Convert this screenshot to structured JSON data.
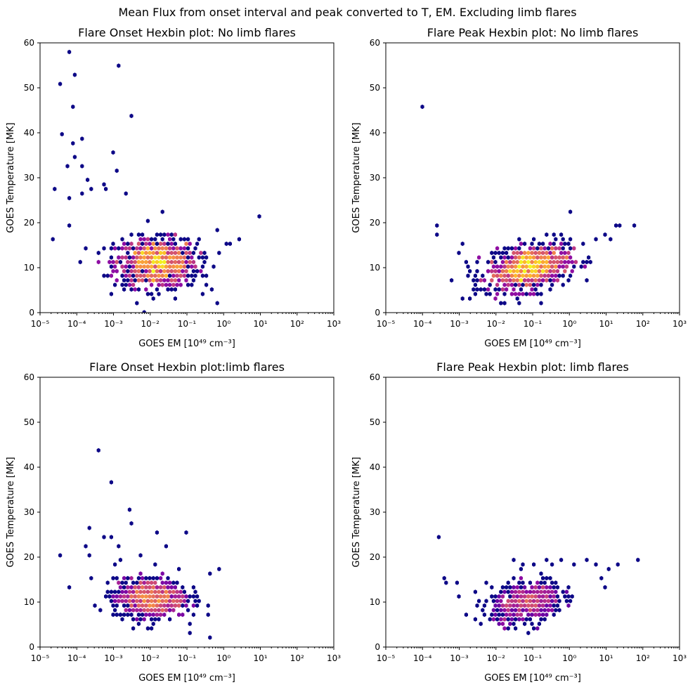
{
  "suptitle": "Mean Flux from onset interval and peak converted to T, EM. Excluding limb flares",
  "colors": {
    "low": "#0d0887",
    "mid": "#9c179e",
    "high": "#ed7953",
    "top": "#fdc328"
  },
  "chart_data": [
    {
      "type": "heatmap",
      "subtype": "hexbin",
      "title": "Flare Onset Hexbin plot: No limb flares",
      "xlabel": "GOES EM [10^49 cm^-3]",
      "ylabel": "GOES Temperature [MK]",
      "xscale": "log",
      "xlim": [
        1e-05,
        1000.0
      ],
      "ylim": [
        0,
        60
      ],
      "xticks": [
        "10^-5",
        "10^-4",
        "10^-3",
        "10^-2",
        "10^-1",
        "10^0",
        "10^1",
        "10^2",
        "10^3"
      ],
      "yticks": [
        0,
        10,
        20,
        30,
        40,
        50,
        60
      ],
      "colormap": "plasma",
      "core": {
        "x_range": [
          0.0004,
          0.3
        ],
        "y_range": [
          5,
          20
        ],
        "center": [
          0.015,
          11
        ],
        "peak_count_relative": 1.0
      },
      "outliers": [
        [
          2.2e-05,
          16
        ],
        [
          2.8e-05,
          28
        ],
        [
          3.5e-05,
          50.5
        ],
        [
          4.2e-05,
          40
        ],
        [
          5e-05,
          33
        ],
        [
          6.5e-05,
          57.5
        ],
        [
          7e-05,
          25
        ],
        [
          7.5e-05,
          46
        ],
        [
          8e-05,
          53
        ],
        [
          8e-05,
          38
        ],
        [
          8.5e-05,
          34.5
        ],
        [
          7e-05,
          19
        ],
        [
          0.00014,
          38.5
        ],
        [
          0.00014,
          33
        ],
        [
          0.00015,
          26
        ],
        [
          0.0002,
          30
        ],
        [
          0.00025,
          27
        ],
        [
          0.0015,
          54.5
        ],
        [
          0.0028,
          44
        ],
        [
          0.0009,
          36
        ],
        [
          0.0012,
          31.5
        ],
        [
          0.002,
          26.5
        ],
        [
          0.0005,
          29
        ],
        [
          0.0006,
          27
        ],
        [
          0.02,
          22.5
        ],
        [
          10,
          21
        ],
        [
          0.6,
          18.5
        ],
        [
          0.7,
          2
        ],
        [
          1.2,
          15
        ],
        [
          1.6,
          15
        ],
        [
          2.5,
          16
        ],
        [
          0.35,
          8
        ],
        [
          0.05,
          3
        ],
        [
          0.00012,
          11.5
        ]
      ]
    },
    {
      "type": "heatmap",
      "subtype": "hexbin",
      "title": "Flare Peak Hexbin plot: No limb flares",
      "xlabel": "GOES EM [10^49 cm^-3]",
      "ylabel": "GOES Temperature [MK]",
      "xscale": "log",
      "xlim": [
        1e-05,
        1000.0
      ],
      "ylim": [
        0,
        60
      ],
      "xticks": [
        "10^-5",
        "10^-4",
        "10^-3",
        "10^-2",
        "10^-1",
        "10^0",
        "10^1",
        "10^2",
        "10^3"
      ],
      "yticks": [
        0,
        10,
        20,
        30,
        40,
        50,
        60
      ],
      "colormap": "plasma",
      "core": {
        "x_range": [
          0.01,
          8
        ],
        "y_range": [
          5,
          18
        ],
        "center": [
          0.08,
          10
        ],
        "peak_count_relative": 1.0
      },
      "outliers": [
        [
          0.00011,
          46.2
        ],
        [
          0.00025,
          19.5
        ],
        [
          0.00025,
          17.5
        ],
        [
          0.001,
          13.5
        ],
        [
          0.0013,
          15.5
        ],
        [
          0.0015,
          11
        ],
        [
          0.0018,
          9
        ],
        [
          0.0025,
          7
        ],
        [
          0.0028,
          5.5
        ],
        [
          0.0035,
          12
        ],
        [
          1,
          22.3
        ],
        [
          0.18,
          2.3
        ],
        [
          65,
          18.9
        ],
        [
          25,
          19.8
        ],
        [
          20,
          19
        ],
        [
          10,
          17.5
        ],
        [
          12,
          16
        ],
        [
          5,
          16.5
        ]
      ]
    },
    {
      "type": "heatmap",
      "subtype": "hexbin",
      "title": "Flare Onset Hexbin plot:limb flares",
      "xlabel": "GOES EM [10^49 cm^-3]",
      "ylabel": "GOES Temperature [MK]",
      "xscale": "log",
      "xlim": [
        1e-05,
        1000.0
      ],
      "ylim": [
        0,
        60
      ],
      "xticks": [
        "10^-5",
        "10^-4",
        "10^-3",
        "10^-2",
        "10^-1",
        "10^0",
        "10^1",
        "10^2",
        "10^3"
      ],
      "yticks": [
        0,
        10,
        20,
        30,
        40,
        50,
        60
      ],
      "colormap": "plasma",
      "core": {
        "x_range": [
          0.0006,
          0.2
        ],
        "y_range": [
          5,
          17
        ],
        "center": [
          0.01,
          11
        ],
        "peak_count_relative": 0.75
      },
      "outliers": [
        [
          3.5e-05,
          20.3
        ],
        [
          7e-05,
          13.5
        ],
        [
          0.00016,
          22
        ],
        [
          0.0002,
          26.5
        ],
        [
          0.00022,
          20.5
        ],
        [
          0.0003,
          9
        ],
        [
          0.00038,
          44
        ],
        [
          0.0005,
          24
        ],
        [
          0.0009,
          36.5
        ],
        [
          0.0009,
          24
        ],
        [
          0.0015,
          19.5
        ],
        [
          0.003,
          31
        ],
        [
          0.003,
          28
        ],
        [
          0.0015,
          22.5
        ],
        [
          0.015,
          25
        ],
        [
          0.025,
          22.5
        ],
        [
          0.09,
          25
        ],
        [
          0.12,
          3
        ],
        [
          0.4,
          2
        ],
        [
          0.4,
          7.5
        ],
        [
          0.8,
          17.2
        ],
        [
          0.4,
          16.5
        ],
        [
          0.005,
          20.3
        ]
      ]
    },
    {
      "type": "heatmap",
      "subtype": "hexbin",
      "title": "Flare Peak Hexbin plot: limb flares",
      "xlabel": "GOES EM [10^49 cm^-3]",
      "ylabel": "GOES Temperature [MK]",
      "xscale": "log",
      "xlim": [
        1e-05,
        1000.0
      ],
      "ylim": [
        0,
        60
      ],
      "xticks": [
        "10^-5",
        "10^-4",
        "10^-3",
        "10^-2",
        "10^-1",
        "10^0",
        "10^1",
        "10^2",
        "10^3"
      ],
      "yticks": [
        0,
        10,
        20,
        30,
        40,
        50,
        60
      ],
      "colormap": "plasma",
      "core": {
        "x_range": [
          0.01,
          3
        ],
        "y_range": [
          5,
          17
        ],
        "center": [
          0.07,
          10
        ],
        "peak_count_relative": 0.6
      },
      "outliers": [
        [
          0.00028,
          24
        ],
        [
          0.00035,
          15.5
        ],
        [
          0.0004,
          14
        ],
        [
          0.0008,
          14.5
        ],
        [
          0.001,
          11
        ],
        [
          0.0015,
          7.5
        ],
        [
          0.003,
          12
        ],
        [
          0.0035,
          10
        ],
        [
          0.004,
          8.5
        ],
        [
          0.006,
          14
        ],
        [
          0.03,
          19.5
        ],
        [
          0.06,
          18
        ],
        [
          0.08,
          3
        ],
        [
          0.12,
          18.5
        ],
        [
          0.25,
          19
        ],
        [
          0.35,
          18
        ],
        [
          0.6,
          19.5
        ],
        [
          1.4,
          18.5
        ],
        [
          3,
          19
        ],
        [
          5,
          18
        ],
        [
          8,
          15.5
        ],
        [
          12,
          17.5
        ],
        [
          22,
          18.5
        ],
        [
          70,
          19
        ],
        [
          10,
          13
        ],
        [
          0.008,
          7
        ]
      ]
    }
  ]
}
